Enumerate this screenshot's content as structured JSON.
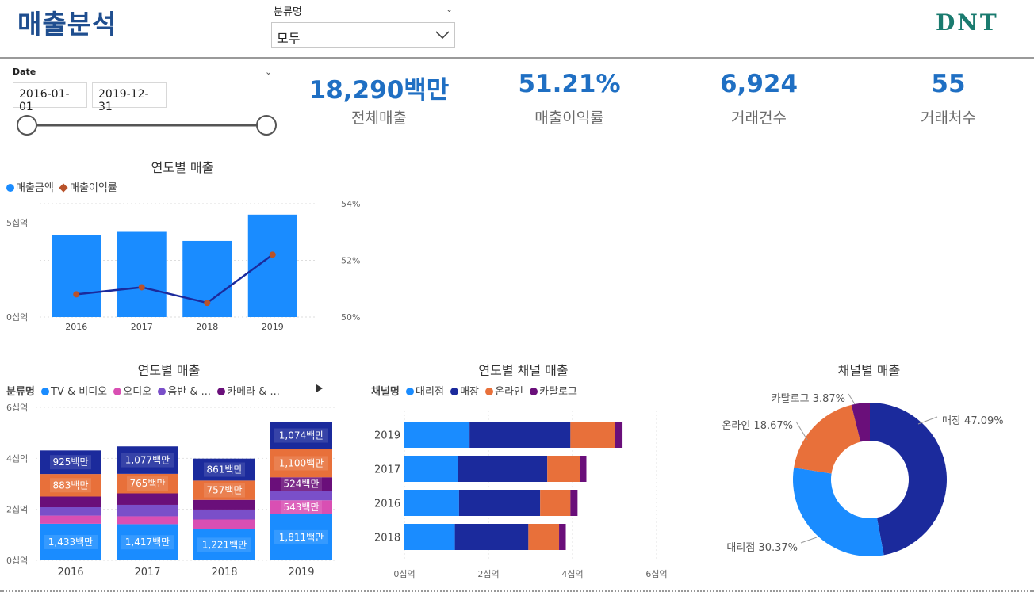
{
  "header": {
    "title": "매출분석",
    "filter_label": "분류명",
    "filter_value": "모두",
    "logo": "DNT"
  },
  "date_filter": {
    "label": "Date",
    "start": "2016-01-01",
    "end": "2019-12-31"
  },
  "kpis": [
    {
      "value": "18,290백만",
      "label": "전체매출"
    },
    {
      "value": "51.21%",
      "label": "매출이익률"
    },
    {
      "value": "6,924",
      "label": "거래건수"
    },
    {
      "value": "55",
      "label": "거래처수"
    }
  ],
  "colors": {
    "blue": "#1a8cff",
    "navy": "#1b2a9c",
    "orange": "#e8703a",
    "purple": "#6a0f7a",
    "violet": "#7a4fc9",
    "pink": "#d94fb3",
    "brown": "#b8522a"
  },
  "chart_data": [
    {
      "type": "bar",
      "title": "연도별 매출",
      "legend": [
        "매출금액",
        "매출이익률"
      ],
      "categories": [
        "2016",
        "2017",
        "2018",
        "2019"
      ],
      "series": [
        {
          "name": "매출금액",
          "values": [
            4.33,
            4.51,
            4.03,
            5.42
          ]
        },
        {
          "name": "매출이익률",
          "values": [
            50.8,
            51.05,
            50.5,
            52.2
          ]
        }
      ],
      "y_ticks": [
        "0십억",
        "5십억"
      ],
      "y2_ticks": [
        "50%",
        "52%",
        "54%"
      ],
      "ylim": [
        0,
        6
      ],
      "y2lim": [
        50,
        54
      ]
    },
    {
      "type": "bar",
      "title": "연도별 매출",
      "legend_title": "분류명",
      "legend": [
        "TV & 비디오",
        "오디오",
        "음반 & ...",
        "카메라 & ..."
      ],
      "categories": [
        "2016",
        "2017",
        "2018",
        "2019"
      ],
      "y_ticks": [
        "0십억",
        "2십억",
        "4십억",
        "6십억"
      ],
      "ylim": [
        0,
        6
      ],
      "segments": [
        {
          "name": "blue",
          "values": [
            1.433,
            1.417,
            1.221,
            1.811
          ],
          "labels": [
            "1,433백만",
            "1,417백만",
            "1,221백만",
            "1,811백만"
          ]
        },
        {
          "name": "pink",
          "values": [
            0.32,
            0.31,
            0.38,
            0.543
          ],
          "labels": [
            "",
            "",
            "",
            "543백만"
          ]
        },
        {
          "name": "violet",
          "values": [
            0.33,
            0.45,
            0.39,
            0.38
          ],
          "labels": [
            "",
            "",
            "",
            ""
          ]
        },
        {
          "name": "purple",
          "values": [
            0.42,
            0.45,
            0.38,
            0.524
          ],
          "labels": [
            "",
            "",
            "",
            "524백만"
          ]
        },
        {
          "name": "orange",
          "values": [
            0.883,
            0.765,
            0.757,
            1.1
          ],
          "labels": [
            "883백만",
            "765백만",
            "757백만",
            "1,100백만"
          ]
        },
        {
          "name": "navy",
          "values": [
            0.925,
            1.077,
            0.861,
            1.074
          ],
          "labels": [
            "925백만",
            "1,077백만",
            "861백만",
            "1,074백만"
          ]
        }
      ]
    },
    {
      "type": "bar",
      "title": "연도별 채널 매출",
      "legend_title": "채널명",
      "legend": [
        "대리점",
        "매장",
        "온라인",
        "카탈로그"
      ],
      "categories": [
        "2019",
        "2017",
        "2016",
        "2018"
      ],
      "x_ticks": [
        "0십억",
        "2십억",
        "4십억",
        "6십억"
      ],
      "xlim": [
        0,
        6
      ],
      "series": [
        {
          "name": "대리점",
          "values": [
            1.55,
            1.27,
            1.3,
            1.2
          ]
        },
        {
          "name": "매장",
          "values": [
            2.4,
            2.13,
            1.93,
            1.75
          ]
        },
        {
          "name": "온라인",
          "values": [
            1.05,
            0.78,
            0.72,
            0.73
          ]
        },
        {
          "name": "카탈로그",
          "values": [
            0.19,
            0.15,
            0.17,
            0.16
          ]
        }
      ]
    },
    {
      "type": "pie",
      "title": "채널별 매출",
      "slices": [
        {
          "name": "매장",
          "value": 47.09,
          "label": "매장 47.09%"
        },
        {
          "name": "대리점",
          "value": 30.37,
          "label": "대리점 30.37%"
        },
        {
          "name": "온라인",
          "value": 18.67,
          "label": "온라인 18.67%"
        },
        {
          "name": "카탈로그",
          "value": 3.87,
          "label": "카탈로그 3.87%"
        }
      ]
    }
  ]
}
